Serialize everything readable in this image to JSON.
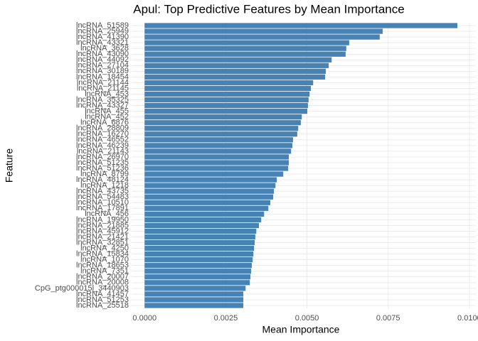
{
  "chart_data": {
    "type": "bar",
    "orientation": "horizontal",
    "title": "Apul: Top Predictive Features by Mean Importance",
    "x_label": "Mean Importance",
    "y_label": "Feature",
    "color": "#4682b4",
    "grid": true,
    "categories": [
      "lncRNA_51589",
      "lncRNA_25949",
      "lncRNA_41390",
      "lncRNA_43321",
      "lncRNA_3628",
      "lncRNA_43090",
      "lncRNA_44092",
      "lncRNA_27104",
      "lncRNA_30189",
      "lncRNA_18454",
      "lncRNA_21144",
      "lncRNA_21145",
      "lncRNA_453",
      "lncRNA_35325",
      "lncRNA_43327",
      "lncRNA_455",
      "lncRNA_452",
      "lncRNA_6876",
      "lncRNA_28809",
      "lncRNA_16270",
      "lncRNA_46552",
      "lncRNA_46239",
      "lncRNA_21143",
      "lncRNA_26970",
      "lncRNA_51235",
      "lncRNA_51236",
      "lncRNA_8799",
      "lncRNA_48124",
      "lncRNA_1218",
      "lncRNA_43735",
      "lncRNA_54483",
      "lncRNA_10510",
      "lncRNA_17891",
      "lncRNA_456",
      "lncRNA_19950",
      "lncRNA_21885",
      "lncRNA_45912",
      "lncRNA_21421",
      "lncRNA_32851",
      "lncRNA_4250",
      "lncRNA_15834",
      "lncRNA_1070",
      "lncRNA_18653",
      "lncRNA_7351",
      "lncRNA_20007",
      "lncRNA_20008",
      "CpG_ptg000015l_3440903",
      "lncRNA_41457",
      "lncRNA_51253",
      "lncRNA_25518"
    ],
    "values": [
      0.00963,
      0.00733,
      0.00724,
      0.0063,
      0.00621,
      0.00619,
      0.00576,
      0.00567,
      0.00558,
      0.00556,
      0.00519,
      0.00512,
      0.00508,
      0.00505,
      0.00503,
      0.00501,
      0.00484,
      0.00481,
      0.00473,
      0.0047,
      0.00457,
      0.00455,
      0.00451,
      0.00444,
      0.00444,
      0.00442,
      0.00427,
      0.00407,
      0.00403,
      0.00398,
      0.00396,
      0.00387,
      0.00381,
      0.00368,
      0.00359,
      0.00352,
      0.00344,
      0.00341,
      0.00339,
      0.00337,
      0.00335,
      0.00333,
      0.0033,
      0.00328,
      0.00326,
      0.00324,
      0.00311,
      0.00304,
      0.00304,
      0.00304
    ],
    "xlim": [
      -0.0004,
      0.0102
    ],
    "xticks": [
      {
        "value": 0,
        "label": "0.0000"
      },
      {
        "value": 0.0025,
        "label": "0.0025"
      },
      {
        "value": 0.005,
        "label": "0.0050"
      },
      {
        "value": 0.0075,
        "label": "0.0075"
      },
      {
        "value": 0.01,
        "label": "0.0100"
      }
    ]
  }
}
